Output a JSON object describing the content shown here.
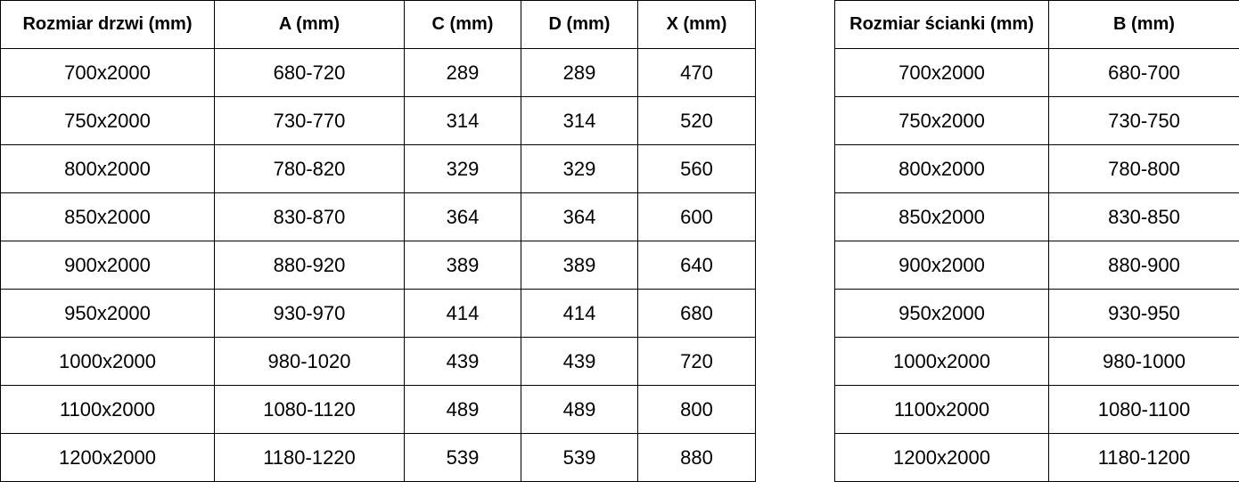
{
  "doors_table": {
    "headers": [
      "Rozmiar drzwi (mm)",
      "A (mm)",
      "C (mm)",
      "D (mm)",
      "X (mm)"
    ],
    "rows": [
      [
        "700x2000",
        "680-720",
        "289",
        "289",
        "470"
      ],
      [
        "750x2000",
        "730-770",
        "314",
        "314",
        "520"
      ],
      [
        "800x2000",
        "780-820",
        "329",
        "329",
        "560"
      ],
      [
        "850x2000",
        "830-870",
        "364",
        "364",
        "600"
      ],
      [
        "900x2000",
        "880-920",
        "389",
        "389",
        "640"
      ],
      [
        "950x2000",
        "930-970",
        "414",
        "414",
        "680"
      ],
      [
        "1000x2000",
        "980-1020",
        "439",
        "439",
        "720"
      ],
      [
        "1100x2000",
        "1080-1120",
        "489",
        "489",
        "800"
      ],
      [
        "1200x2000",
        "1180-1220",
        "539",
        "539",
        "880"
      ]
    ]
  },
  "wall_table": {
    "headers": [
      "Rozmiar ścianki (mm)",
      "B (mm)"
    ],
    "rows": [
      [
        "700x2000",
        "680-700"
      ],
      [
        "750x2000",
        "730-750"
      ],
      [
        "800x2000",
        "780-800"
      ],
      [
        "850x2000",
        "830-850"
      ],
      [
        "900x2000",
        "880-900"
      ],
      [
        "950x2000",
        "930-950"
      ],
      [
        "1000x2000",
        "980-1000"
      ],
      [
        "1100x2000",
        "1080-1100"
      ],
      [
        "1200x2000",
        "1180-1200"
      ]
    ]
  }
}
